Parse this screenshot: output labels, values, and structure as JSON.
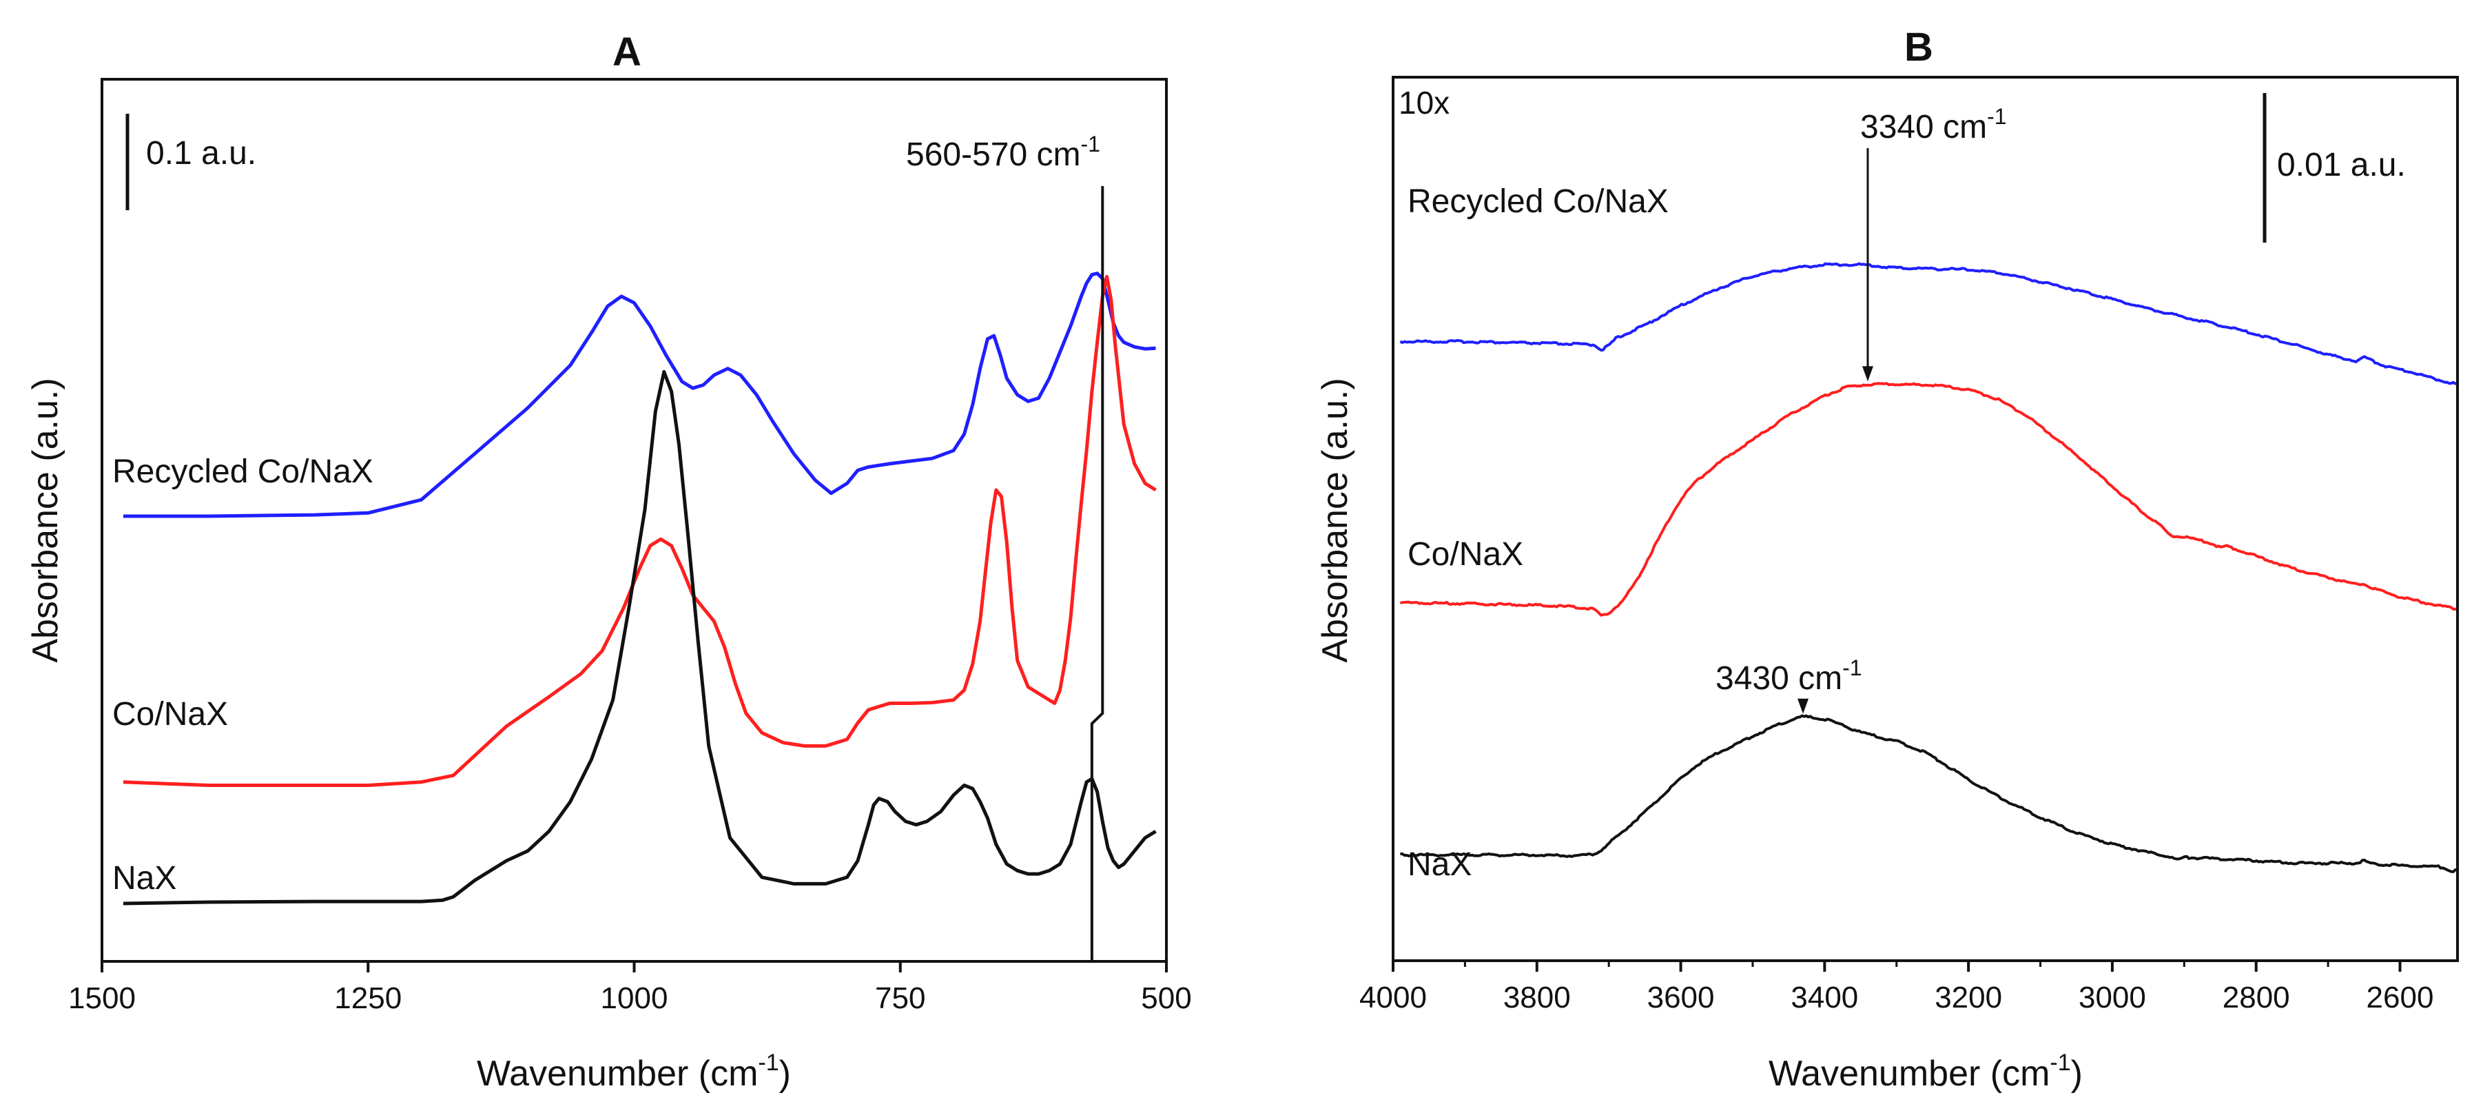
{
  "chart_data": [
    {
      "type": "line",
      "panel_label": "A",
      "title": "",
      "xlabel": "Wavenumber (cm",
      "xlabel_sup": "-1",
      "xlabel_close": ")",
      "ylabel": "Absorbance (a.u.)",
      "xlim": [
        1500,
        500
      ],
      "x_ticks": [
        1500,
        1250,
        1000,
        750,
        500
      ],
      "scale_bar": {
        "label": "0.1 a.u.",
        "value": 0.1
      },
      "annotation": {
        "text": "560-570 cm",
        "sup": "-1",
        "x_bottom": 570,
        "x_top": 560
      },
      "grid": false,
      "y_range_au": [
        0,
        1.05
      ],
      "series": [
        {
          "name": "Recycled Co/NaX",
          "label": "Recycled Co/NaX",
          "color": "#1f1fff",
          "x": [
            1480,
            1400,
            1300,
            1250,
            1200,
            1150,
            1100,
            1060,
            1040,
            1025,
            1012,
            1000,
            985,
            970,
            955,
            945,
            935,
            925,
            912,
            900,
            885,
            870,
            850,
            830,
            815,
            800,
            790,
            780,
            760,
            740,
            720,
            700,
            690,
            682,
            675,
            668,
            662,
            656,
            650,
            640,
            630,
            620,
            610,
            600,
            590,
            580,
            575,
            570,
            565,
            560,
            555,
            550,
            545,
            540,
            530,
            520,
            510
          ],
          "y": [
            0.61,
            0.61,
            0.612,
            0.615,
            0.635,
            0.705,
            0.775,
            0.84,
            0.89,
            0.93,
            0.945,
            0.935,
            0.9,
            0.855,
            0.815,
            0.805,
            0.81,
            0.825,
            0.835,
            0.825,
            0.795,
            0.755,
            0.705,
            0.665,
            0.645,
            0.66,
            0.68,
            0.685,
            0.69,
            0.694,
            0.698,
            0.71,
            0.735,
            0.78,
            0.835,
            0.88,
            0.885,
            0.855,
            0.82,
            0.795,
            0.785,
            0.79,
            0.82,
            0.86,
            0.9,
            0.945,
            0.965,
            0.978,
            0.98,
            0.972,
            0.94,
            0.905,
            0.885,
            0.875,
            0.868,
            0.865,
            0.866
          ]
        },
        {
          "name": "Co/NaX",
          "label": "Co/NaX",
          "color": "#ff1f1f",
          "x": [
            1480,
            1400,
            1300,
            1250,
            1200,
            1170,
            1150,
            1120,
            1080,
            1050,
            1030,
            1010,
            995,
            985,
            975,
            965,
            955,
            945,
            935,
            925,
            915,
            905,
            895,
            880,
            860,
            840,
            820,
            800,
            790,
            780,
            770,
            760,
            740,
            720,
            700,
            690,
            682,
            675,
            670,
            665,
            660,
            655,
            650,
            645,
            640,
            630,
            620,
            610,
            605,
            600,
            595,
            590,
            585,
            580,
            575,
            570,
            565,
            560,
            556,
            552,
            548,
            544,
            540,
            530,
            520,
            510
          ],
          "y": [
            0.205,
            0.2,
            0.2,
            0.2,
            0.205,
            0.215,
            0.245,
            0.29,
            0.335,
            0.37,
            0.405,
            0.47,
            0.53,
            0.565,
            0.575,
            0.565,
            0.53,
            0.49,
            0.47,
            0.45,
            0.41,
            0.355,
            0.31,
            0.28,
            0.265,
            0.26,
            0.26,
            0.27,
            0.295,
            0.315,
            0.32,
            0.325,
            0.325,
            0.326,
            0.33,
            0.345,
            0.385,
            0.45,
            0.525,
            0.6,
            0.65,
            0.64,
            0.57,
            0.47,
            0.39,
            0.35,
            0.34,
            0.33,
            0.325,
            0.345,
            0.39,
            0.455,
            0.545,
            0.63,
            0.71,
            0.8,
            0.875,
            0.945,
            0.975,
            0.94,
            0.87,
            0.81,
            0.75,
            0.69,
            0.66,
            0.65
          ]
        },
        {
          "name": "NaX",
          "label": "NaX",
          "color": "#111111",
          "x": [
            1480,
            1400,
            1300,
            1250,
            1200,
            1180,
            1170,
            1150,
            1120,
            1100,
            1080,
            1060,
            1040,
            1020,
            1005,
            990,
            980,
            972,
            965,
            958,
            950,
            940,
            930,
            910,
            880,
            850,
            820,
            800,
            790,
            780,
            775,
            770,
            762,
            755,
            745,
            735,
            725,
            712,
            700,
            690,
            682,
            675,
            668,
            660,
            650,
            640,
            630,
            620,
            610,
            600,
            590,
            580,
            575,
            570,
            565,
            560,
            555,
            550,
            545,
            540,
            530,
            520,
            510
          ],
          "y": [
            0.02,
            0.022,
            0.023,
            0.023,
            0.023,
            0.025,
            0.03,
            0.055,
            0.085,
            0.1,
            0.13,
            0.175,
            0.24,
            0.33,
            0.47,
            0.62,
            0.77,
            0.83,
            0.8,
            0.72,
            0.59,
            0.42,
            0.26,
            0.12,
            0.06,
            0.05,
            0.05,
            0.06,
            0.085,
            0.14,
            0.17,
            0.18,
            0.175,
            0.16,
            0.145,
            0.14,
            0.145,
            0.16,
            0.185,
            0.2,
            0.195,
            0.175,
            0.15,
            0.11,
            0.08,
            0.07,
            0.065,
            0.065,
            0.07,
            0.08,
            0.11,
            0.175,
            0.205,
            0.21,
            0.19,
            0.145,
            0.105,
            0.085,
            0.075,
            0.08,
            0.1,
            0.12,
            0.13
          ]
        }
      ]
    },
    {
      "type": "line",
      "panel_label": "B",
      "title": "",
      "xlabel": "Wavenumber (cm",
      "xlabel_sup": "-1",
      "xlabel_close": ")",
      "ylabel": "Absorbance (a.u.)",
      "xlim": [
        4000,
        2520
      ],
      "x_ticks": [
        4000,
        3800,
        3600,
        3400,
        3200,
        3000,
        2800,
        2600
      ],
      "scale_bar": {
        "label": "0.01 a.u.",
        "value": 0.01
      },
      "magnification_label": "10x",
      "annotations": [
        {
          "text": "3340 cm",
          "sup": "-1",
          "x": 3340,
          "target": "Co/NaX"
        },
        {
          "text": "3430 cm",
          "sup": "-1",
          "x": 3430,
          "target": "NaX"
        }
      ],
      "grid": false,
      "y_range_au": [
        0,
        0.1
      ],
      "series": [
        {
          "name": "Recycled Co/NaX",
          "label": "Recycled Co/NaX",
          "color": "#1f1fff",
          "x": [
            3990,
            3900,
            3800,
            3750,
            3720,
            3710,
            3700,
            3690,
            3650,
            3600,
            3550,
            3500,
            3450,
            3400,
            3350,
            3300,
            3250,
            3200,
            3150,
            3100,
            3050,
            3000,
            2950,
            2900,
            2850,
            2800,
            2750,
            2700,
            2660,
            2650,
            2640,
            2620,
            2600,
            2580,
            2550,
            2520
          ],
          "y": [
            0.0768,
            0.0768,
            0.0766,
            0.0765,
            0.0764,
            0.0758,
            0.0763,
            0.0772,
            0.0788,
            0.0812,
            0.0832,
            0.0848,
            0.0857,
            0.0862,
            0.0862,
            0.0858,
            0.0857,
            0.0856,
            0.0851,
            0.0841,
            0.0831,
            0.082,
            0.0808,
            0.0798,
            0.0788,
            0.0777,
            0.0765,
            0.0752,
            0.0744,
            0.0749,
            0.0745,
            0.0738,
            0.0734,
            0.073,
            0.0722,
            0.0716
          ]
        },
        {
          "name": "Co/NaX",
          "label": "Co/NaX",
          "color": "#ff1f1f",
          "x": [
            3990,
            3900,
            3800,
            3750,
            3720,
            3710,
            3700,
            3680,
            3660,
            3640,
            3620,
            3600,
            3580,
            3550,
            3500,
            3450,
            3400,
            3370,
            3340,
            3300,
            3260,
            3230,
            3200,
            3160,
            3120,
            3080,
            3040,
            3000,
            2960,
            2930,
            2920,
            2900,
            2860,
            2850,
            2840,
            2800,
            2750,
            2700,
            2660,
            2650,
            2640,
            2600,
            2560,
            2520
          ],
          "y": [
            0.0449,
            0.0448,
            0.0446,
            0.0444,
            0.0441,
            0.0433,
            0.0436,
            0.0452,
            0.0478,
            0.0512,
            0.0545,
            0.0575,
            0.0596,
            0.0618,
            0.0648,
            0.0678,
            0.0702,
            0.0712,
            0.0716,
            0.0716,
            0.0715,
            0.0713,
            0.0709,
            0.0698,
            0.0678,
            0.0651,
            0.0622,
            0.0591,
            0.0561,
            0.0541,
            0.0531,
            0.053,
            0.0521,
            0.0516,
            0.0518,
            0.0506,
            0.0491,
            0.048,
            0.0471,
            0.0472,
            0.0467,
            0.0456,
            0.0448,
            0.0441
          ]
        },
        {
          "name": "NaX",
          "label": "NaX",
          "color": "#111111",
          "x": [
            3990,
            3900,
            3800,
            3750,
            3720,
            3710,
            3700,
            3680,
            3650,
            3620,
            3600,
            3580,
            3550,
            3500,
            3470,
            3450,
            3430,
            3400,
            3380,
            3350,
            3320,
            3300,
            3280,
            3260,
            3250,
            3200,
            3150,
            3100,
            3050,
            3000,
            2950,
            2920,
            2910,
            2900,
            2850,
            2800,
            2750,
            2700,
            2660,
            2650,
            2640,
            2600,
            2560,
            2540,
            2530,
            2520
          ],
          "y": [
            0.0141,
            0.0141,
            0.0141,
            0.014,
            0.0142,
            0.0147,
            0.0155,
            0.017,
            0.0193,
            0.0218,
            0.0234,
            0.0249,
            0.0265,
            0.0286,
            0.0298,
            0.0305,
            0.031,
            0.0307,
            0.0301,
            0.0291,
            0.0284,
            0.028,
            0.0273,
            0.0266,
            0.0261,
            0.0233,
            0.0208,
            0.0187,
            0.0168,
            0.0154,
            0.0144,
            0.0139,
            0.0135,
            0.0138,
            0.0136,
            0.0134,
            0.0131,
            0.0131,
            0.0131,
            0.0134,
            0.013,
            0.0128,
            0.0127,
            0.0126,
            0.0121,
            0.0122
          ]
        }
      ]
    }
  ]
}
